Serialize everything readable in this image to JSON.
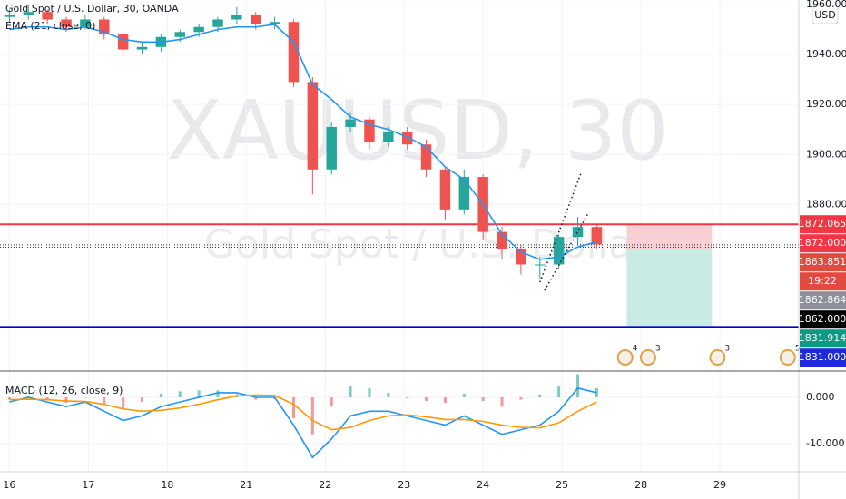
{
  "chart_data": {
    "type": "candlestick",
    "title": "Gold Spot / U.S. Dollar, 30, OANDA",
    "watermark": "XAUUSD, 30",
    "watermark_subtitle": "Gold Spot / U.S. Dollar",
    "indicator": "EMA (21, close, 0)",
    "currency": "USD",
    "x": [
      0,
      0.24,
      0.48,
      0.72,
      0.96,
      1.2,
      1.44,
      1.68,
      1.92,
      2.16,
      2.4,
      2.64,
      2.88,
      3.12,
      3.36,
      3.6,
      3.84,
      4.08,
      4.32,
      4.56,
      4.8,
      5.04,
      5.28,
      5.52,
      5.76,
      6,
      6.24,
      6.48,
      6.72,
      6.96,
      7.2,
      7.44
    ],
    "open": [
      1955,
      1956,
      1957,
      1954,
      1951,
      1954,
      1948,
      1942,
      1943,
      1947,
      1949,
      1951,
      1954,
      1956,
      1952,
      1953,
      1929,
      1894,
      1911,
      1914,
      1905,
      1909,
      1904,
      1894,
      1878,
      1891,
      1869,
      1862,
      1856,
      1856,
      1867,
      1871
    ],
    "high": [
      1958,
      1960,
      1958,
      1955,
      1956,
      1955,
      1949,
      1945,
      1948,
      1950,
      1952,
      1955,
      1959,
      1957,
      1955,
      1954,
      1931,
      1913,
      1917,
      1915,
      1911,
      1911,
      1906,
      1895,
      1894,
      1892,
      1871,
      1864,
      1859,
      1868,
      1875,
      1872
    ],
    "low": [
      1953,
      1954,
      1952,
      1949,
      1950,
      1946,
      1939,
      1940,
      1941,
      1945,
      1947,
      1949,
      1952,
      1950,
      1950,
      1927,
      1884,
      1892,
      1909,
      1902,
      1903,
      1902,
      1891,
      1874,
      1876,
      1866,
      1858,
      1852,
      1850,
      1854,
      1864,
      1862
    ],
    "close": [
      1956,
      1957,
      1954,
      1951,
      1954,
      1948,
      1942,
      1943,
      1947,
      1949,
      1951,
      1954,
      1956,
      1952,
      1953,
      1929,
      1894,
      1911,
      1914,
      1905,
      1909,
      1904,
      1894,
      1878,
      1891,
      1869,
      1862,
      1856,
      1856,
      1867,
      1871,
      1864
    ],
    "up_color": "#26a69a",
    "down_color": "#ef5350",
    "ema": {
      "color": "#2196f3",
      "values": [
        1950,
        1951,
        1951,
        1950,
        1951,
        1949,
        1946,
        1945,
        1945,
        1946,
        1948,
        1950,
        1951,
        1951,
        1952,
        1945,
        1928,
        1922,
        1915,
        1912,
        1910,
        1907,
        1903,
        1895,
        1890,
        1880,
        1868,
        1861,
        1858,
        1859,
        1863,
        1865
      ]
    },
    "xlim": [
      -0.12,
      10.0
    ],
    "xticks": [
      {
        "value": 0,
        "label": "16"
      },
      {
        "value": 1,
        "label": "17"
      },
      {
        "value": 2,
        "label": "18"
      },
      {
        "value": 3,
        "label": "21"
      },
      {
        "value": 4,
        "label": "22"
      },
      {
        "value": 5,
        "label": "23"
      },
      {
        "value": 6,
        "label": "24"
      },
      {
        "value": 7,
        "label": "25"
      },
      {
        "value": 8,
        "label": "28"
      },
      {
        "value": 9,
        "label": "29"
      }
    ],
    "ylim": [
      1813.7,
      1961.8
    ],
    "yticks": [
      {
        "value": 1880,
        "label": "1880.000"
      },
      {
        "value": 1900,
        "label": "1900.000"
      },
      {
        "value": 1920,
        "label": "1920.000"
      },
      {
        "value": 1940,
        "label": "1940.000"
      },
      {
        "value": 1960,
        "label": "1960.000"
      }
    ],
    "levels": [
      {
        "value": 1872.065,
        "color": "#f23645",
        "style": "solid"
      },
      {
        "value": 1831,
        "color": "#0000cc",
        "style": "solid"
      },
      {
        "value": 1863.851,
        "color": "#333333",
        "style": "dotted"
      },
      {
        "value": 1862.864,
        "color": "#333333",
        "style": "dotted"
      }
    ],
    "position": {
      "entry": 1862,
      "stop": 1872.065,
      "target": 1831,
      "x": [
        7.82,
        8.9
      ],
      "stop_color": "#f8d0d4",
      "target_color": "#c8ebe4"
    },
    "trendlines": [
      {
        "x": [
          6.72,
          7.24
        ],
        "y": [
          1848.9,
          1892.4
        ]
      },
      {
        "x": [
          6.78,
          7.33
        ],
        "y": [
          1845.6,
          1876.4
        ]
      }
    ],
    "price_tags": [
      {
        "value": 1872.065,
        "label": "1872.065",
        "color": "#f23645"
      },
      {
        "value": 1872,
        "label": "1872.000",
        "color": "#f23645"
      },
      {
        "value": 1863.851,
        "label": "1863.851",
        "color": "#e04a3f"
      },
      {
        "label": "19:22",
        "color": "#e04a3f"
      },
      {
        "value": 1862.864,
        "label": "1862.864",
        "color": "#8a8f99"
      },
      {
        "value": 1862,
        "label": "1862.000",
        "color": "#000000"
      },
      {
        "value": 1831.914,
        "label": "1831.914",
        "color": "#0c9b82"
      },
      {
        "value": 1831,
        "label": "1831.000",
        "color": "#1e2bd6"
      }
    ],
    "events": [
      {
        "x": 7.8,
        "label": "4"
      },
      {
        "x": 8.09,
        "label": "3"
      },
      {
        "x": 8.97,
        "label": "3"
      },
      {
        "x": 9.86,
        "label": "5"
      }
    ],
    "macd": {
      "title": "MACD (12, 26, close, 9)",
      "ylim": [
        -16.1,
        5.5
      ],
      "yticks": [
        {
          "value": 0,
          "label": "0.000"
        },
        {
          "value": -10,
          "label": "-10.000"
        }
      ],
      "macd": {
        "color": "#2196f3",
        "values": [
          -1,
          0,
          -1,
          -2,
          -1,
          -3,
          -5,
          -4,
          -2,
          -1,
          0,
          1,
          1,
          0,
          0,
          -6,
          -13,
          -9,
          -4,
          -3,
          -3,
          -4,
          -5,
          -6,
          -4,
          -6,
          -8,
          -7,
          -6,
          -3,
          2,
          1
        ]
      },
      "signal": {
        "color": "#ff9800",
        "values": [
          -0.5,
          -0.4,
          -0.5,
          -0.8,
          -0.9,
          -1.5,
          -2.5,
          -3,
          -2.8,
          -2.3,
          -1.5,
          -0.5,
          0.3,
          0.5,
          0.4,
          -1.5,
          -5,
          -7,
          -6.5,
          -5,
          -4,
          -3.8,
          -4.2,
          -4.8,
          -4.8,
          -5.2,
          -6,
          -6.5,
          -6.6,
          -5.5,
          -3,
          -1
        ]
      },
      "histogram": {
        "up_color": "#26a69a",
        "down_color": "#ef5350",
        "values": [
          -0.5,
          0.4,
          -0.5,
          -1.2,
          -0.1,
          -1.5,
          -2.5,
          -1,
          0.8,
          1.3,
          1.5,
          1.5,
          0.7,
          -0.5,
          -0.4,
          -4.5,
          -8,
          -2,
          2.5,
          2,
          1,
          -0.2,
          -0.8,
          -1.2,
          0.8,
          -0.8,
          -2,
          -0.5,
          0.6,
          2.5,
          5,
          2
        ]
      }
    }
  }
}
